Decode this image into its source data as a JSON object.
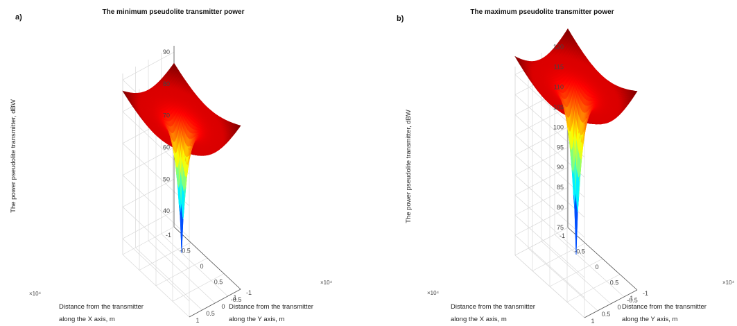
{
  "chart_data": [
    {
      "type": "surface",
      "panel_label": "a)",
      "title": "The minimum pseudolite transmitter power",
      "xlabel": [
        "Distance from the transmitter",
        "along the X axis, m"
      ],
      "ylabel": [
        "Distance from the transmitter",
        "along the Y axis, m"
      ],
      "zlabel": "The power pseudolite transmitter, dBW",
      "x_ticks": [
        "-1",
        "-0.5",
        "0",
        "0.5",
        "1"
      ],
      "y_ticks": [
        "-1",
        "-0.5",
        "0",
        "0.5",
        "1"
      ],
      "x_multiplier": "×10⁴",
      "y_multiplier": "×10⁴",
      "xlim": [
        -10000,
        10000
      ],
      "ylim": [
        -10000,
        10000
      ],
      "zlim": [
        35,
        92
      ],
      "z_ticks": [
        40,
        50,
        60,
        70,
        80,
        90
      ],
      "surface": {
        "center_min": 41,
        "edge_value": 82.5,
        "corner_max": 86.5
      },
      "colormap": "jet",
      "grid": true
    },
    {
      "type": "surface",
      "panel_label": "b)",
      "title": "The maximum pseudolite transmitter power",
      "xlabel": [
        "Distance from the transmitter",
        "along the X axis, m"
      ],
      "ylabel": [
        "Distance from the transmitter",
        "along the Y axis, m"
      ],
      "zlabel": "The power pseudolite transmitter, dBW",
      "x_ticks": [
        "-1",
        "-0.5",
        "0",
        "0.5",
        "1"
      ],
      "y_ticks": [
        "-1",
        "-0.5",
        "0",
        "0.5",
        "1"
      ],
      "x_multiplier": "×10⁴",
      "y_multiplier": "×10⁴",
      "xlim": [
        -10000,
        10000
      ],
      "ylim": [
        -10000,
        10000
      ],
      "zlim": [
        75,
        122
      ],
      "z_ticks": [
        75,
        80,
        85,
        90,
        95,
        100,
        105,
        110,
        115,
        120
      ],
      "surface": {
        "center_min": 79.5,
        "edge_value": 120.5,
        "corner_max": 124.5
      },
      "colormap": "jet",
      "grid": true
    }
  ]
}
